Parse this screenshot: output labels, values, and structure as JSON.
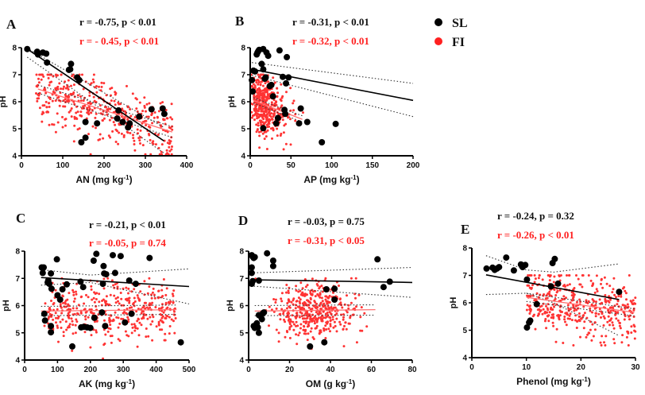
{
  "legend": [
    {
      "label": "SL",
      "color": "#000000"
    },
    {
      "label": "FI",
      "color": "#ff2a2a"
    }
  ],
  "colors": {
    "SL": "#000000",
    "FI": "#ff3333",
    "FI_line": "#ff7070",
    "ci": "#333333"
  },
  "chart_data": [
    {
      "type": "scatter",
      "panel": "A",
      "xlabel": "AN (mg kg-1)",
      "ylabel": "pH",
      "xlim": [
        0,
        400
      ],
      "ylim": [
        4,
        8
      ],
      "xticks": [
        0,
        100,
        200,
        300,
        400
      ],
      "yticks": [
        4,
        5,
        6,
        7,
        8
      ],
      "stats": {
        "SL": "r = -0.75, p < 0.01",
        "FI": "r = - 0.45, p < 0.01"
      },
      "fits": {
        "SL": {
          "x": [
            14,
            345
          ],
          "y": [
            7.95,
            4.55
          ],
          "ci_upper": [
            [
              14,
              7.98
            ],
            [
              345,
              5.05
            ]
          ],
          "ci_lower": [
            [
              14,
              7.65
            ],
            [
              345,
              4.1
            ]
          ]
        },
        "FI": {
          "x": [
            40,
            365
          ],
          "y": [
            6.47,
            4.88
          ],
          "ci_upper": [
            [
              40,
              6.62
            ],
            [
              365,
              5.08
            ]
          ],
          "ci_lower": [
            [
              40,
              6.32
            ],
            [
              365,
              4.68
            ]
          ]
        }
      },
      "SL_points": [
        [
          14,
          7.95
        ],
        [
          38,
          7.85
        ],
        [
          40,
          7.75
        ],
        [
          52,
          7.82
        ],
        [
          60,
          7.78
        ],
        [
          62,
          7.45
        ],
        [
          115,
          7.18
        ],
        [
          118,
          7.2
        ],
        [
          120,
          7.4
        ],
        [
          135,
          6.9
        ],
        [
          140,
          6.8
        ],
        [
          145,
          4.5
        ],
        [
          155,
          5.25
        ],
        [
          155,
          4.67
        ],
        [
          183,
          5.2
        ],
        [
          235,
          5.68
        ],
        [
          232,
          5.38
        ],
        [
          245,
          5.25
        ],
        [
          258,
          5.05
        ],
        [
          262,
          5.2
        ],
        [
          285,
          5.45
        ],
        [
          315,
          5.72
        ],
        [
          342,
          5.75
        ],
        [
          346,
          5.55
        ]
      ],
      "FI_summary": {
        "n": 420,
        "x_range": [
          35,
          365
        ],
        "y_range": [
          4.05,
          7.0
        ]
      }
    },
    {
      "type": "scatter",
      "panel": "B",
      "xlabel": "AP (mg kg-1)",
      "ylabel": "pH",
      "xlim": [
        0,
        200
      ],
      "ylim": [
        4,
        8
      ],
      "xticks": [
        0,
        50,
        100,
        150,
        200
      ],
      "yticks": [
        4,
        5,
        6,
        7,
        8
      ],
      "stats": {
        "SL": "r = -0.31, p < 0.01",
        "FI": "r = -0.32, p < 0.01"
      },
      "fits": {
        "SL": {
          "x": [
            2,
            200
          ],
          "y": [
            7.2,
            6.05
          ],
          "ci_upper": [
            [
              2,
              7.45
            ],
            [
              200,
              6.68
            ]
          ],
          "ci_lower": [
            [
              2,
              6.98
            ],
            [
              200,
              5.45
            ]
          ]
        },
        "FI": {
          "x": [
            4,
            64
          ],
          "y": [
            6.05,
            5.35
          ],
          "ci_upper": [
            [
              4,
              6.15
            ],
            [
              64,
              5.48
            ]
          ],
          "ci_lower": [
            [
              4,
              5.95
            ],
            [
              64,
              5.25
            ]
          ]
        }
      },
      "SL_points": [
        [
          2,
          6.8
        ],
        [
          3,
          6.38
        ],
        [
          4,
          7.15
        ],
        [
          6,
          7.12
        ],
        [
          8,
          7.75
        ],
        [
          9,
          7.82
        ],
        [
          10,
          7.88
        ],
        [
          11,
          7.92
        ],
        [
          16,
          7.95
        ],
        [
          20,
          7.82
        ],
        [
          22,
          7.7
        ],
        [
          14,
          7.4
        ],
        [
          16,
          7.2
        ],
        [
          18,
          6.85
        ],
        [
          19,
          6.9
        ],
        [
          24,
          6.58
        ],
        [
          26,
          6.62
        ],
        [
          28,
          6.2
        ],
        [
          32,
          5.2
        ],
        [
          34,
          5.4
        ],
        [
          36,
          7.9
        ],
        [
          40,
          6.92
        ],
        [
          42,
          5.7
        ],
        [
          43,
          5.55
        ],
        [
          44,
          6.68
        ],
        [
          45,
          7.65
        ],
        [
          47,
          6.9
        ],
        [
          60,
          5.2
        ],
        [
          62,
          5.75
        ],
        [
          70,
          5.25
        ],
        [
          88,
          4.5
        ],
        [
          105,
          5.18
        ],
        [
          16,
          5.02
        ]
      ],
      "FI_summary": {
        "n": 420,
        "x_range": [
          0,
          65
        ],
        "y_range": [
          4.05,
          7.0
        ]
      }
    },
    {
      "type": "scatter",
      "panel": "C",
      "xlabel": "AK (mg kg-1)",
      "ylabel": "pH",
      "xlim": [
        0,
        500
      ],
      "ylim": [
        4,
        8
      ],
      "xticks": [
        0,
        100,
        200,
        300,
        400,
        500
      ],
      "yticks": [
        4,
        5,
        6,
        7,
        8
      ],
      "stats": {
        "SL": "r = -0.21, p < 0.01",
        "FI": "r = -0.05, p = 0.74"
      },
      "fits": {
        "SL": {
          "x": [
            50,
            500
          ],
          "y": [
            7.03,
            6.7
          ],
          "ci_upper": [
            [
              50,
              7.32
            ],
            [
              200,
              7.12
            ],
            [
              500,
              7.35
            ]
          ],
          "ci_lower": [
            [
              50,
              6.75
            ],
            [
              200,
              6.85
            ],
            [
              500,
              6.06
            ]
          ]
        },
        "FI": {
          "x": [
            50,
            462
          ],
          "y": [
            5.8,
            5.85
          ],
          "ci_upper": [
            [
              50,
              5.97
            ],
            [
              462,
              6.02
            ]
          ],
          "ci_lower": [
            [
              50,
              5.63
            ],
            [
              462,
              5.68
            ]
          ]
        }
      },
      "SL_points": [
        [
          52,
          7.4
        ],
        [
          55,
          7.2
        ],
        [
          58,
          7.4
        ],
        [
          60,
          5.7
        ],
        [
          62,
          5.45
        ],
        [
          70,
          6.85
        ],
        [
          72,
          6.92
        ],
        [
          75,
          6.8
        ],
        [
          80,
          7.18
        ],
        [
          82,
          6.62
        ],
        [
          80,
          5.25
        ],
        [
          80,
          5.02
        ],
        [
          98,
          7.7
        ],
        [
          100,
          6.38
        ],
        [
          108,
          6.22
        ],
        [
          115,
          6.6
        ],
        [
          128,
          6.78
        ],
        [
          145,
          4.5
        ],
        [
          170,
          6.88
        ],
        [
          172,
          5.2
        ],
        [
          178,
          6.68
        ],
        [
          180,
          5.22
        ],
        [
          190,
          5.2
        ],
        [
          200,
          5.18
        ],
        [
          210,
          7.65
        ],
        [
          218,
          7.9
        ],
        [
          235,
          5.75
        ],
        [
          238,
          6.8
        ],
        [
          240,
          7.45
        ],
        [
          242,
          7.18
        ],
        [
          245,
          5.25
        ],
        [
          248,
          7.15
        ],
        [
          268,
          7.85
        ],
        [
          275,
          7.2
        ],
        [
          292,
          7.82
        ],
        [
          305,
          5.38
        ],
        [
          318,
          6.92
        ],
        [
          325,
          5.7
        ],
        [
          338,
          6.8
        ],
        [
          380,
          7.75
        ],
        [
          475,
          4.65
        ],
        [
          212,
          5.55
        ]
      ],
      "FI_summary": {
        "n": 420,
        "x_range": [
          50,
          460
        ],
        "y_range": [
          4.05,
          7.0
        ]
      }
    },
    {
      "type": "scatter",
      "panel": "D",
      "xlabel": "OM (g kg-1)",
      "ylabel": "pH",
      "xlim": [
        0,
        80
      ],
      "ylim": [
        4,
        8
      ],
      "xticks": [
        0,
        20,
        40,
        60,
        80
      ],
      "yticks": [
        4,
        5,
        6,
        7,
        8
      ],
      "stats": {
        "SL": "r = -0.03, p = 0.75",
        "FI": "r = -0.31, p < 0.05"
      },
      "fits": {
        "SL": {
          "x": [
            1,
            80
          ],
          "y": [
            6.95,
            6.85
          ],
          "ci_upper": [
            [
              1,
              7.2
            ],
            [
              80,
              7.4
            ]
          ],
          "ci_lower": [
            [
              1,
              6.72
            ],
            [
              80,
              6.3
            ]
          ]
        },
        "FI": {
          "x": [
            3,
            62
          ],
          "y": [
            5.8,
            5.85
          ],
          "ci_upper": [
            [
              3,
              6.0
            ],
            [
              62,
              6.03
            ]
          ],
          "ci_lower": [
            [
              3,
              5.63
            ],
            [
              62,
              5.65
            ]
          ]
        }
      },
      "SL_points": [
        [
          1.5,
          7.85
        ],
        [
          2,
          7.8
        ],
        [
          2.5,
          7.75
        ],
        [
          3,
          7.78
        ],
        [
          1.5,
          7.4
        ],
        [
          1.5,
          7.2
        ],
        [
          1.5,
          6.8
        ],
        [
          2,
          6.9
        ],
        [
          5,
          6.92
        ],
        [
          9,
          7.92
        ],
        [
          12,
          7.65
        ],
        [
          12,
          7.45
        ],
        [
          2.5,
          5.25
        ],
        [
          3,
          5.18
        ],
        [
          3.5,
          5.22
        ],
        [
          4,
          5.35
        ],
        [
          4.5,
          5.2
        ],
        [
          5,
          5.0
        ],
        [
          5,
          5.65
        ],
        [
          6,
          5.6
        ],
        [
          6.5,
          5.5
        ],
        [
          7,
          5.72
        ],
        [
          7.5,
          5.75
        ],
        [
          30,
          4.5
        ],
        [
          37,
          4.65
        ],
        [
          38,
          6.6
        ],
        [
          42,
          6.62
        ],
        [
          42,
          6.22
        ],
        [
          63,
          7.7
        ],
        [
          66,
          6.68
        ],
        [
          69,
          6.88
        ]
      ],
      "FI_summary": {
        "n": 420,
        "x_range": [
          3,
          62
        ],
        "y_range": [
          4.05,
          7.0
        ]
      }
    },
    {
      "type": "scatter",
      "panel": "E",
      "xlabel": "Phenol (mg kg-1)",
      "ylabel": "pH",
      "xlim": [
        0,
        30
      ],
      "ylim": [
        4,
        8
      ],
      "xticks": [
        0,
        10,
        20,
        30
      ],
      "yticks": [
        4,
        5,
        6,
        7,
        8
      ],
      "stats": {
        "SL": "r = -0.24, p = 0.32",
        "FI": "r = -0.26, p < 0.01"
      },
      "fits": {
        "SL": {
          "x": [
            2.6,
            27
          ],
          "y": [
            7.02,
            6.12
          ],
          "ci_upper": [
            [
              2.6,
              7.72
            ],
            [
              10,
              7.2
            ],
            [
              15,
              7.12
            ],
            [
              27,
              7.42
            ]
          ],
          "ci_lower": [
            [
              2.6,
              6.3
            ],
            [
              10,
              6.35
            ],
            [
              15,
              6.0
            ],
            [
              27,
              4.8
            ]
          ]
        },
        "FI": {
          "x": [
            10,
            29.8
          ],
          "y": [
            6.2,
            5.65
          ],
          "ci_upper": [
            [
              10,
              6.35
            ],
            [
              29.8,
              5.78
            ]
          ],
          "ci_lower": [
            [
              10,
              6.05
            ],
            [
              29.8,
              5.52
            ]
          ]
        }
      },
      "SL_points": [
        [
          2.7,
          7.25
        ],
        [
          3.8,
          7.28
        ],
        [
          4.2,
          7.2
        ],
        [
          4.6,
          7.25
        ],
        [
          5.0,
          7.3
        ],
        [
          6.3,
          7.65
        ],
        [
          7.7,
          7.18
        ],
        [
          9.0,
          7.4
        ],
        [
          9.3,
          7.3
        ],
        [
          9.8,
          7.38
        ],
        [
          10.1,
          6.85
        ],
        [
          10.1,
          5.1
        ],
        [
          10.5,
          5.28
        ],
        [
          10.7,
          5.35
        ],
        [
          11.9,
          5.95
        ],
        [
          14.8,
          7.45
        ],
        [
          15.2,
          7.6
        ],
        [
          14.5,
          6.6
        ],
        [
          15.8,
          6.7
        ],
        [
          27,
          6.4
        ]
      ],
      "FI_summary": {
        "n": 420,
        "x_range": [
          10,
          30
        ],
        "y_range": [
          4.45,
          7.0
        ]
      }
    }
  ]
}
